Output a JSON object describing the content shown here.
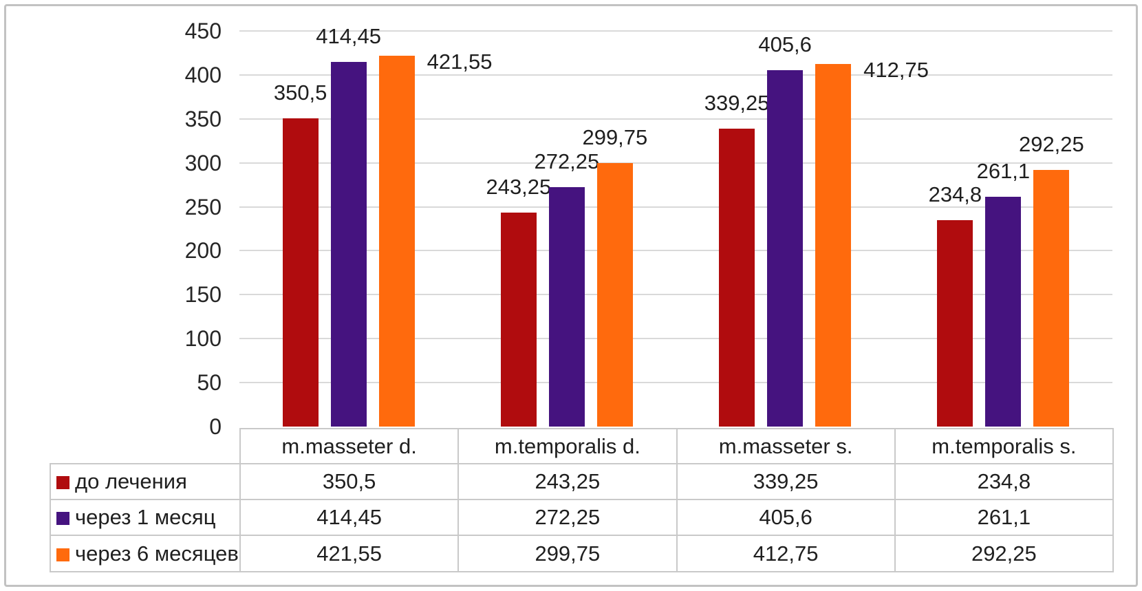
{
  "chart_data": {
    "type": "bar",
    "title": "",
    "xlabel": "",
    "ylabel": "",
    "ylim": [
      0,
      450
    ],
    "ytick_step": 50,
    "ytick_labels": [
      "0",
      "50",
      "100",
      "150",
      "200",
      "250",
      "300",
      "350",
      "400",
      "450"
    ],
    "grid": true,
    "legend_position": "table-left",
    "categories": [
      "m.masseter d.",
      "m.temporalis d.",
      "m.masseter s.",
      "m.temporalis s."
    ],
    "series": [
      {
        "name": "до лечения",
        "color": "#b00c0e",
        "values": [
          350.5,
          243.25,
          339.25,
          234.8
        ],
        "value_labels": [
          "350,5",
          "243,25",
          "339,25",
          "234,8"
        ],
        "label_placements": [
          "above",
          "above",
          "above",
          "above"
        ]
      },
      {
        "name": "через 1 месяц",
        "color": "#45137f",
        "values": [
          414.45,
          272.25,
          405.6,
          261.1
        ],
        "value_labels": [
          "414,45",
          "272,25",
          "405,6",
          "261,1"
        ],
        "label_placements": [
          "above",
          "above",
          "above",
          "above"
        ]
      },
      {
        "name": "через 6 месяцев",
        "color": "#ff6a0d",
        "values": [
          421.55,
          299.75,
          412.75,
          292.25
        ],
        "value_labels": [
          "421,55",
          "299,75",
          "412,75",
          "292,25"
        ],
        "label_placements": [
          "right",
          "above",
          "right",
          "above"
        ]
      }
    ]
  },
  "colors": {
    "gridline": "#d9d9d9",
    "table_border": "#c9c9c9",
    "frame_border": "#c2c2c2",
    "text": "#1f1f1f"
  }
}
